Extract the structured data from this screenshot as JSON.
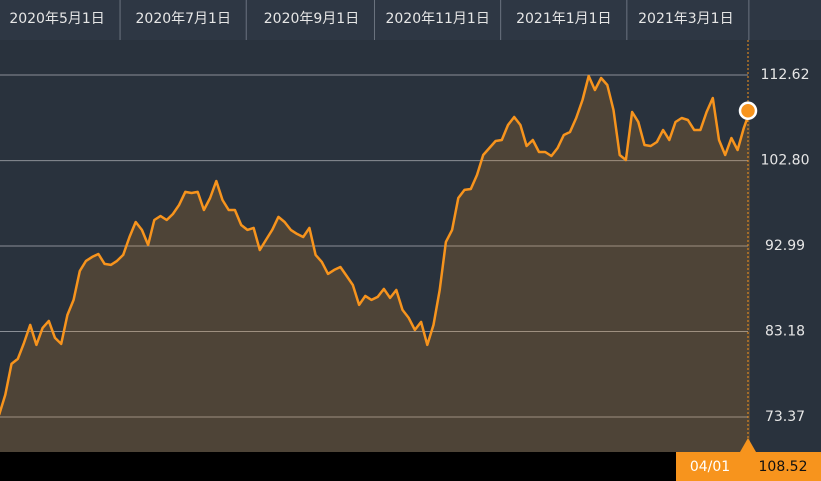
{
  "chart_data": {
    "type": "line",
    "x": [
      "2020-04-03",
      "2020-04-06",
      "2020-04-09",
      "2020-04-12",
      "2020-04-15",
      "2020-04-18",
      "2020-04-21",
      "2020-04-24",
      "2020-04-27",
      "2020-04-30",
      "2020-05-03",
      "2020-05-06",
      "2020-05-09",
      "2020-05-12",
      "2020-05-15",
      "2020-05-18",
      "2020-05-21",
      "2020-05-24",
      "2020-05-27",
      "2020-05-30",
      "2020-06-02",
      "2020-06-05",
      "2020-06-08",
      "2020-06-11",
      "2020-06-14",
      "2020-06-17",
      "2020-06-20",
      "2020-06-23",
      "2020-06-26",
      "2020-06-29",
      "2020-07-02",
      "2020-07-05",
      "2020-07-08",
      "2020-07-11",
      "2020-07-14",
      "2020-07-17",
      "2020-07-20",
      "2020-07-23",
      "2020-07-26",
      "2020-07-29",
      "2020-08-01",
      "2020-08-04",
      "2020-08-07",
      "2020-08-10",
      "2020-08-13",
      "2020-08-16",
      "2020-08-19",
      "2020-08-22",
      "2020-08-25",
      "2020-08-28",
      "2020-08-31",
      "2020-09-03",
      "2020-09-06",
      "2020-09-09",
      "2020-09-12",
      "2020-09-15",
      "2020-09-18",
      "2020-09-21",
      "2020-09-24",
      "2020-09-27",
      "2020-09-30",
      "2020-10-03",
      "2020-10-06",
      "2020-10-09",
      "2020-10-12",
      "2020-10-15",
      "2020-10-18",
      "2020-10-21",
      "2020-10-24",
      "2020-10-27",
      "2020-10-30",
      "2020-11-02",
      "2020-11-05",
      "2020-11-08",
      "2020-11-11",
      "2020-11-14",
      "2020-11-17",
      "2020-11-20",
      "2020-11-23",
      "2020-11-26",
      "2020-11-29",
      "2020-12-02",
      "2020-12-05",
      "2020-12-08",
      "2020-12-11",
      "2020-12-14",
      "2020-12-17",
      "2020-12-20",
      "2020-12-23",
      "2020-12-26",
      "2020-12-29",
      "2021-01-01",
      "2021-01-04",
      "2021-01-07",
      "2021-01-10",
      "2021-01-13",
      "2021-01-16",
      "2021-01-19",
      "2021-01-22",
      "2021-01-25",
      "2021-01-28",
      "2021-01-31",
      "2021-02-03",
      "2021-02-06",
      "2021-02-09",
      "2021-02-12",
      "2021-02-15",
      "2021-02-18",
      "2021-02-21",
      "2021-02-24",
      "2021-02-27",
      "2021-03-02",
      "2021-03-05",
      "2021-03-08",
      "2021-03-11",
      "2021-03-14",
      "2021-03-17",
      "2021-03-20",
      "2021-03-23",
      "2021-03-26",
      "2021-03-29",
      "2021-04-01"
    ],
    "series": [
      {
        "color": "#f7941d",
        "values": [
          73.61,
          75.91,
          79.46,
          80.04,
          81.87,
          83.94,
          81.64,
          83.59,
          84.4,
          82.45,
          81.76,
          85.08,
          86.81,
          90.13,
          91.28,
          91.74,
          92.08,
          90.94,
          90.82,
          91.28,
          91.97,
          94.03,
          95.75,
          94.84,
          93.12,
          95.98,
          96.44,
          95.98,
          96.67,
          97.71,
          99.2,
          99.08,
          99.2,
          97.13,
          98.51,
          100.46,
          98.28,
          97.13,
          97.13,
          95.41,
          94.84,
          95.07,
          92.54,
          93.69,
          94.84,
          96.33,
          95.75,
          94.84,
          94.38,
          94.03,
          95.07,
          91.97,
          91.17,
          89.79,
          90.25,
          90.59,
          89.56,
          88.53,
          86.23,
          87.27,
          86.81,
          87.15,
          88.07,
          87.04,
          87.95,
          85.66,
          84.74,
          83.36,
          84.28,
          81.64,
          83.94,
          87.95,
          93.46,
          94.84,
          98.51,
          99.43,
          99.54,
          101.15,
          103.44,
          104.24,
          105.05,
          105.16,
          106.88,
          107.8,
          106.88,
          104.47,
          105.16,
          103.79,
          103.79,
          103.33,
          104.24,
          105.74,
          106.08,
          107.69,
          109.75,
          112.51,
          110.9,
          112.28,
          111.47,
          108.6,
          103.44,
          102.87,
          108.37,
          107.23,
          104.59,
          104.47,
          104.93,
          106.31,
          105.16,
          107.23,
          107.69,
          107.46,
          106.31,
          106.31,
          108.37,
          109.98,
          105.16,
          103.44,
          105.39,
          104.01,
          106.54,
          108.52
        ]
      }
    ],
    "xlim": [
      "2020-04-01",
      "2021-04-01"
    ],
    "xticks": [
      {
        "value": "2020-05-01",
        "label": "2020年5月1日"
      },
      {
        "value": "2020-07-01",
        "label": "2020年7月1日"
      },
      {
        "value": "2020-09-01",
        "label": "2020年9月1日"
      },
      {
        "value": "2020-11-01",
        "label": "2020年11月1日"
      },
      {
        "value": "2021-01-01",
        "label": "2021年1月1日"
      },
      {
        "value": "2021-03-01",
        "label": "2021年3月1日"
      }
    ],
    "ylim": [
      69.35,
      116.64
    ],
    "yticks": [
      73.37,
      83.18,
      92.99,
      {
        "value": 102.8,
        "label": "102.80"
      },
      112.62
    ],
    "grid": true,
    "last_date_label": "04/01"
  }
}
